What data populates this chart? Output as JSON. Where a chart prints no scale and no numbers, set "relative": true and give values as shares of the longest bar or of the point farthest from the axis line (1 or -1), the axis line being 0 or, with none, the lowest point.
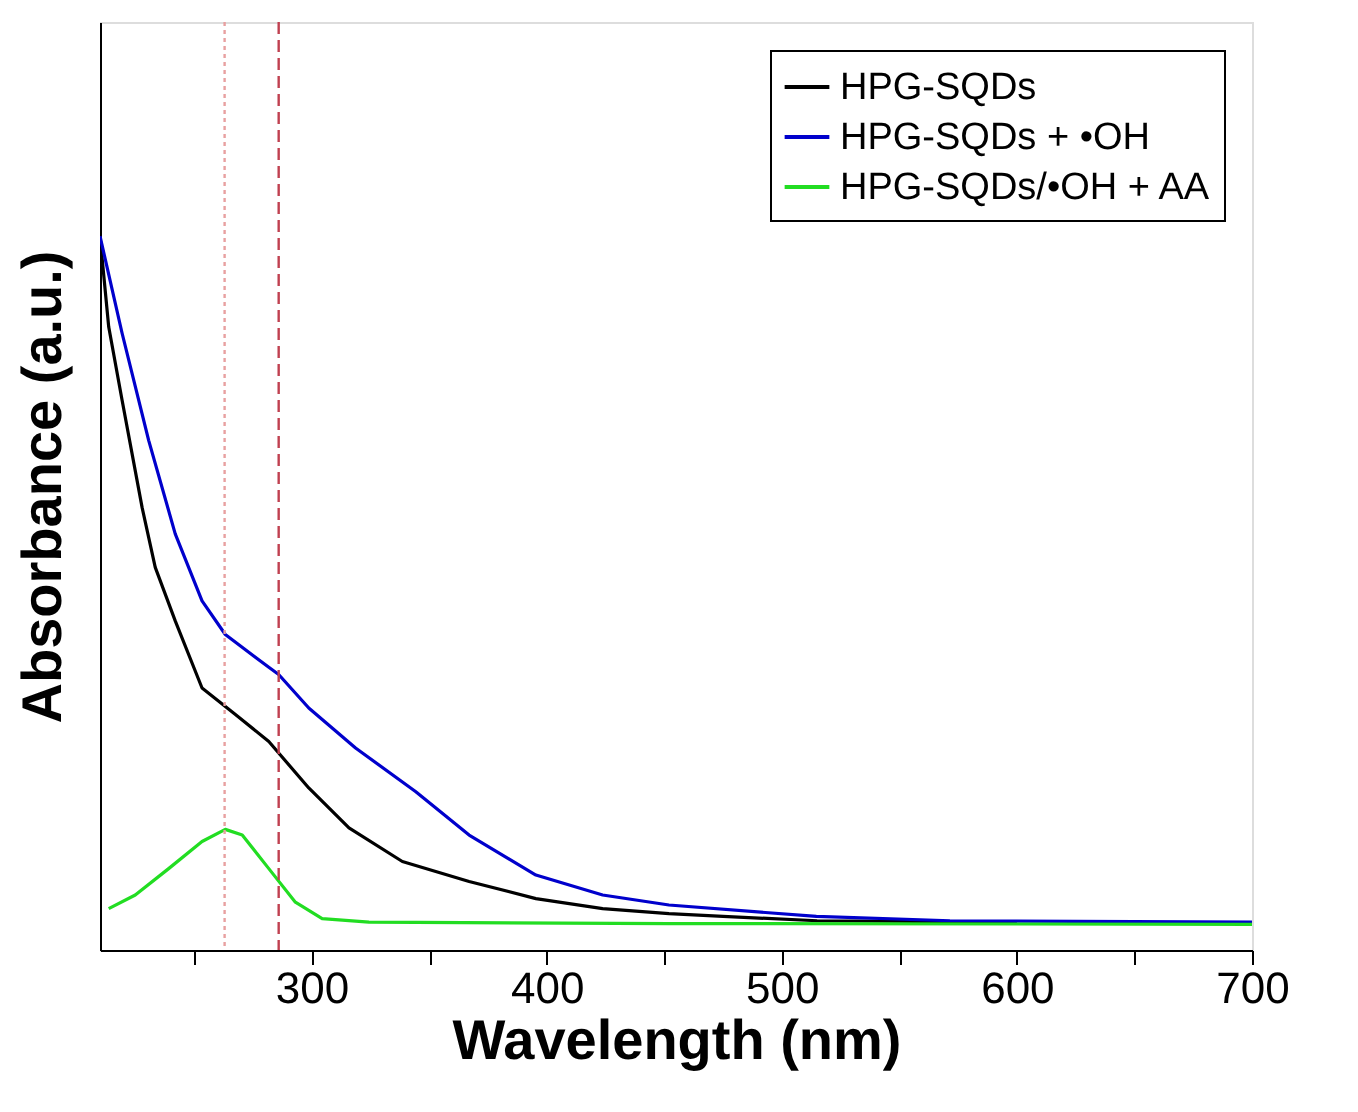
{
  "chart_data": {
    "type": "line",
    "xlabel": "Wavelength (nm)",
    "ylabel": "Absorbance (a.u.)",
    "relative": true,
    "xlim": [
      210,
      700
    ],
    "xticks": [
      {
        "value": 250,
        "label": null
      },
      300,
      {
        "value": 350,
        "label": null
      },
      400,
      {
        "value": 450,
        "label": null
      },
      500,
      {
        "value": 550,
        "label": null
      },
      600,
      {
        "value": 650,
        "label": null
      },
      700
    ],
    "series": [
      {
        "name": "HPG-SQDs",
        "color": "#000000",
        "x": [
          210,
          213.7,
          219.4,
          227.9,
          233.5,
          242,
          253.4,
          267.6,
          281.8,
          298.8,
          315.9,
          338.6,
          367,
          395.4,
          423.8,
          452,
          475,
          515,
          600
        ],
        "values": [
          1.0,
          0.873,
          0.77,
          0.62,
          0.536,
          0.461,
          0.367,
          0.33,
          0.292,
          0.227,
          0.171,
          0.124,
          0.096,
          0.072,
          0.058,
          0.051,
          0.047,
          0.041,
          0.039
        ]
      },
      {
        "name": "HPG-SQDs + •OH",
        "color": "#0000cc",
        "x": [
          210,
          219.4,
          230.7,
          242,
          253.4,
          263.3,
          281.8,
          286,
          298.8,
          318.7,
          344.2,
          367,
          395.4,
          423.8,
          452,
          514.7,
          571.5,
          700
        ],
        "values": [
          1.0,
          0.864,
          0.714,
          0.583,
          0.489,
          0.442,
          0.396,
          0.386,
          0.339,
          0.283,
          0.222,
          0.161,
          0.105,
          0.077,
          0.063,
          0.047,
          0.041,
          0.039
        ]
      },
      {
        "name": "HPG-SQDs/•OH + AA",
        "color": "#22dd22",
        "x": [
          213.7,
          225,
          239.2,
          253.4,
          263.3,
          270.5,
          281.8,
          293.1,
          304.5,
          324.4,
          452,
          700
        ],
        "values": [
          0.058,
          0.077,
          0.114,
          0.152,
          0.169,
          0.161,
          0.114,
          0.067,
          0.044,
          0.039,
          0.037,
          0.036
        ]
      }
    ],
    "ref_lines": [
      {
        "axis": "x",
        "value": 263,
        "color": "#e8a0a0",
        "line_style": "dotted"
      },
      {
        "axis": "x",
        "value": 286,
        "color": "#c04050",
        "line_style": "dashed"
      }
    ],
    "legend": "top right",
    "grid": false
  }
}
